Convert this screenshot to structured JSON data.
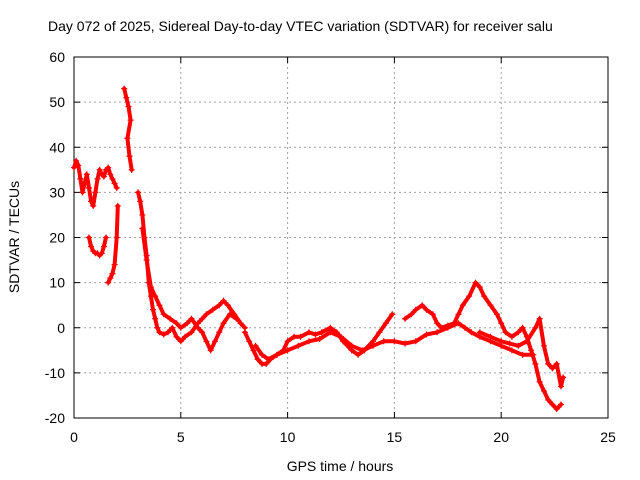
{
  "chart_data": {
    "type": "scatter",
    "title": "Day 072 of 2025, Sidereal Day-to-day VTEC variation (SDTVAR) for receiver salu",
    "xlabel": "GPS time / hours",
    "ylabel": "SDTVAR / TECUs",
    "xlim": [
      0,
      25
    ],
    "ylim": [
      -20,
      60
    ],
    "xticks": [
      0,
      5,
      10,
      15,
      20,
      25
    ],
    "yticks": [
      -20,
      -10,
      0,
      10,
      20,
      30,
      40,
      50,
      60
    ],
    "grid": true,
    "marker": "+",
    "series": [
      {
        "name": "salu",
        "color": "#ff0000",
        "segments": [
          [
            [
              0.0,
              35.5
            ],
            [
              0.1,
              37.0
            ],
            [
              0.2,
              36.0
            ],
            [
              0.3,
              33.0
            ],
            [
              0.4,
              30.0
            ],
            [
              0.5,
              32.0
            ],
            [
              0.6,
              34.0
            ],
            [
              0.7,
              31.0
            ],
            [
              0.8,
              28.0
            ],
            [
              0.9,
              27.0
            ],
            [
              1.0,
              30.0
            ],
            [
              1.1,
              33.0
            ],
            [
              1.2,
              35.0
            ],
            [
              1.3,
              34.0
            ],
            [
              1.4,
              33.5
            ],
            [
              1.5,
              35.0
            ],
            [
              1.6,
              35.5
            ],
            [
              1.7,
              34.0
            ],
            [
              1.8,
              33.0
            ],
            [
              1.9,
              32.0
            ],
            [
              2.0,
              31.0
            ]
          ],
          [
            [
              0.7,
              20.0
            ],
            [
              0.8,
              18.0
            ],
            [
              0.9,
              17.0
            ],
            [
              1.0,
              16.5
            ],
            [
              1.1,
              16.5
            ],
            [
              1.2,
              16.0
            ],
            [
              1.3,
              16.5
            ],
            [
              1.4,
              18.0
            ],
            [
              1.5,
              20.0
            ]
          ],
          [
            [
              1.6,
              10.0
            ],
            [
              1.7,
              11.0
            ],
            [
              1.8,
              12.0
            ],
            [
              1.9,
              14.0
            ],
            [
              2.0,
              20.0
            ],
            [
              2.05,
              27.0
            ]
          ],
          [
            [
              2.35,
              53.0
            ],
            [
              2.45,
              51.0
            ],
            [
              2.55,
              49.0
            ],
            [
              2.65,
              46.0
            ],
            [
              2.5,
              42.0
            ],
            [
              2.6,
              38.0
            ],
            [
              2.7,
              35.0
            ]
          ],
          [
            [
              3.0,
              30.0
            ],
            [
              3.1,
              28.0
            ],
            [
              3.2,
              25.0
            ],
            [
              3.3,
              20.0
            ],
            [
              3.4,
              16.0
            ],
            [
              3.5,
              10.0
            ],
            [
              3.6,
              7.0
            ],
            [
              3.7,
              4.0
            ],
            [
              3.8,
              2.0
            ],
            [
              3.9,
              0.0
            ],
            [
              4.0,
              -1.0
            ],
            [
              4.2,
              -1.5
            ],
            [
              4.4,
              -1.0
            ],
            [
              4.6,
              0.0
            ],
            [
              4.8,
              -2.0
            ],
            [
              5.0,
              -3.0
            ],
            [
              5.2,
              -2.0
            ],
            [
              5.5,
              -1.0
            ],
            [
              5.8,
              1.0
            ],
            [
              6.0,
              2.0
            ],
            [
              6.2,
              3.0
            ],
            [
              6.5,
              4.0
            ],
            [
              6.8,
              5.0
            ],
            [
              7.0,
              6.0
            ],
            [
              7.2,
              5.0
            ],
            [
              7.5,
              3.0
            ],
            [
              7.8,
              1.0
            ],
            [
              8.0,
              0.0
            ]
          ],
          [
            [
              3.2,
              22.0
            ],
            [
              3.4,
              15.0
            ],
            [
              3.6,
              9.0
            ],
            [
              3.8,
              7.0
            ],
            [
              4.0,
              5.0
            ],
            [
              4.2,
              3.0
            ],
            [
              4.5,
              2.0
            ],
            [
              4.8,
              1.0
            ],
            [
              5.0,
              0.0
            ],
            [
              5.3,
              1.0
            ],
            [
              5.5,
              2.0
            ],
            [
              5.8,
              0.0
            ],
            [
              6.0,
              -1.0
            ],
            [
              6.2,
              -3.0
            ],
            [
              6.4,
              -5.0
            ],
            [
              6.6,
              -3.0
            ],
            [
              6.8,
              -1.0
            ],
            [
              7.0,
              1.0
            ],
            [
              7.3,
              3.0
            ],
            [
              7.6,
              2.0
            ]
          ],
          [
            [
              8.0,
              -1.0
            ],
            [
              8.2,
              -3.0
            ],
            [
              8.4,
              -5.0
            ],
            [
              8.6,
              -7.0
            ],
            [
              8.8,
              -8.0
            ],
            [
              9.0,
              -8.0
            ],
            [
              9.2,
              -7.0
            ],
            [
              9.5,
              -6.0
            ],
            [
              9.8,
              -5.0
            ],
            [
              10.0,
              -3.0
            ],
            [
              10.3,
              -2.0
            ],
            [
              10.6,
              -2.0
            ],
            [
              11.0,
              -1.0
            ],
            [
              11.3,
              -1.5
            ],
            [
              11.6,
              -1.0
            ],
            [
              12.0,
              0.0
            ],
            [
              12.3,
              -1.0
            ],
            [
              12.6,
              -3.0
            ],
            [
              13.0,
              -5.0
            ],
            [
              13.3,
              -6.0
            ],
            [
              13.6,
              -5.0
            ],
            [
              14.0,
              -3.0
            ],
            [
              14.3,
              -1.0
            ],
            [
              14.6,
              1.0
            ],
            [
              14.9,
              3.0
            ]
          ],
          [
            [
              8.5,
              -4.0
            ],
            [
              8.8,
              -6.0
            ],
            [
              9.1,
              -7.0
            ],
            [
              9.5,
              -6.0
            ],
            [
              10.0,
              -5.0
            ],
            [
              10.5,
              -4.0
            ],
            [
              11.0,
              -3.0
            ],
            [
              11.5,
              -2.5
            ],
            [
              12.0,
              -1.0
            ],
            [
              12.5,
              -2.0
            ],
            [
              13.0,
              -4.0
            ],
            [
              13.5,
              -5.0
            ],
            [
              14.0,
              -4.0
            ],
            [
              14.5,
              -3.0
            ],
            [
              15.0,
              -3.0
            ],
            [
              15.5,
              -3.5
            ],
            [
              16.0,
              -3.0
            ],
            [
              16.5,
              -1.5
            ],
            [
              17.0,
              -1.0
            ],
            [
              17.5,
              0.0
            ],
            [
              18.0,
              1.0
            ],
            [
              18.3,
              0.0
            ],
            [
              18.6,
              -1.0
            ],
            [
              19.0,
              -2.0
            ],
            [
              19.5,
              -3.0
            ],
            [
              20.0,
              -4.0
            ],
            [
              20.5,
              -5.0
            ],
            [
              21.0,
              -6.0
            ],
            [
              21.5,
              -6.0
            ]
          ],
          [
            [
              15.5,
              2.0
            ],
            [
              15.8,
              3.0
            ],
            [
              16.0,
              4.0
            ],
            [
              16.3,
              5.0
            ],
            [
              16.5,
              4.0
            ],
            [
              16.8,
              3.0
            ],
            [
              17.0,
              1.0
            ],
            [
              17.2,
              0.0
            ],
            [
              17.5,
              0.5
            ],
            [
              17.8,
              1.0
            ],
            [
              18.0,
              3.0
            ],
            [
              18.2,
              5.0
            ],
            [
              18.5,
              7.0
            ],
            [
              18.8,
              10.0
            ],
            [
              19.0,
              9.0
            ],
            [
              19.2,
              7.0
            ],
            [
              19.5,
              5.0
            ],
            [
              19.8,
              3.0
            ],
            [
              20.0,
              1.0
            ],
            [
              20.2,
              -1.0
            ],
            [
              20.5,
              -2.0
            ],
            [
              20.8,
              -1.0
            ],
            [
              21.0,
              0.0
            ],
            [
              21.2,
              -2.0
            ],
            [
              21.4,
              -5.0
            ],
            [
              21.6,
              -8.0
            ],
            [
              21.8,
              -12.0
            ],
            [
              22.0,
              -14.0
            ],
            [
              22.2,
              -16.0
            ],
            [
              22.4,
              -17.0
            ],
            [
              22.6,
              -18.0
            ],
            [
              22.8,
              -17.0
            ]
          ],
          [
            [
              19.0,
              -1.0
            ],
            [
              19.5,
              -2.0
            ],
            [
              20.0,
              -3.0
            ],
            [
              20.4,
              -3.5
            ],
            [
              20.8,
              -4.0
            ],
            [
              21.2,
              -3.0
            ],
            [
              21.6,
              0.0
            ],
            [
              21.8,
              2.0
            ],
            [
              22.0,
              -4.0
            ],
            [
              22.2,
              -8.0
            ],
            [
              22.4,
              -9.0
            ],
            [
              22.6,
              -8.0
            ],
            [
              22.8,
              -13.0
            ],
            [
              22.9,
              -11.0
            ]
          ]
        ]
      }
    ]
  }
}
